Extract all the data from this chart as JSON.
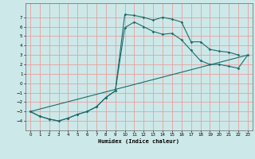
{
  "xlabel": "Humidex (Indice chaleur)",
  "ylabel": "",
  "background_color": "#cde8e8",
  "grid_color": "#e8a0a0",
  "line_color": "#1a6b6b",
  "xlim": [
    -0.5,
    23.5
  ],
  "ylim": [
    -5,
    8.5
  ],
  "xticks": [
    0,
    1,
    2,
    3,
    4,
    5,
    6,
    7,
    8,
    9,
    10,
    11,
    12,
    13,
    14,
    15,
    16,
    17,
    18,
    19,
    20,
    21,
    22,
    23
  ],
  "yticks": [
    -4,
    -3,
    -2,
    -1,
    0,
    1,
    2,
    3,
    4,
    5,
    6,
    7
  ],
  "line1_x": [
    0,
    1,
    2,
    3,
    4,
    5,
    6,
    7,
    8,
    9,
    10,
    11,
    12,
    13,
    14,
    15,
    16,
    17,
    18,
    19,
    20,
    21,
    22
  ],
  "line1_y": [
    -3.0,
    -3.5,
    -3.8,
    -4.0,
    -3.7,
    -3.3,
    -3.0,
    -2.5,
    -1.5,
    -0.8,
    7.3,
    7.2,
    7.0,
    6.7,
    7.0,
    6.8,
    6.5,
    4.4,
    4.4,
    3.6,
    3.4,
    3.3,
    3.0
  ],
  "line2_x": [
    0,
    1,
    2,
    3,
    4,
    5,
    6,
    7,
    8,
    9,
    10,
    11,
    12,
    13,
    14,
    15,
    16,
    17,
    18,
    19,
    20,
    21,
    22,
    23
  ],
  "line2_y": [
    -3.0,
    -3.5,
    -3.8,
    -4.0,
    -3.7,
    -3.3,
    -3.0,
    -2.5,
    -1.5,
    -0.8,
    5.9,
    6.5,
    6.0,
    5.5,
    5.2,
    5.3,
    4.6,
    3.5,
    2.4,
    2.0,
    2.0,
    1.8,
    1.6,
    3.0
  ],
  "line3_x": [
    0,
    23
  ],
  "line3_y": [
    -3.0,
    3.0
  ]
}
